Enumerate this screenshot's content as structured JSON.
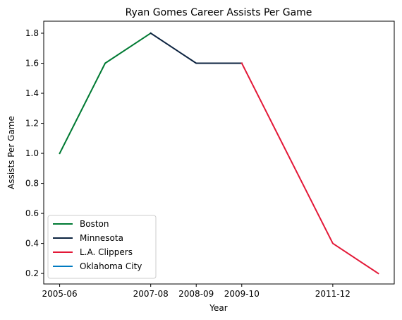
{
  "chart_data": {
    "type": "line",
    "title": "Ryan Gomes Career Assists Per Game",
    "xlabel": "Year",
    "ylabel": "Assists Per Game",
    "x_ticks": [
      "2005-06",
      "2007-08",
      "2008-09",
      "2009-10",
      "2011-12"
    ],
    "ylim": [
      0.13,
      1.88
    ],
    "y_ticks": [
      0.2,
      0.4,
      0.6,
      0.8,
      1.0,
      1.2,
      1.4,
      1.6,
      1.8
    ],
    "grid": false,
    "legend_position": "lower-left",
    "series": [
      {
        "name": "Boston",
        "color": "#007A33",
        "points": [
          {
            "x": "2005-06",
            "y": 1.0
          },
          {
            "x": "2006-07",
            "y": 1.6
          },
          {
            "x": "2007-08",
            "y": 1.8
          }
        ]
      },
      {
        "name": "Minnesota",
        "color": "#0C2340",
        "points": [
          {
            "x": "2007-08",
            "y": 1.8
          },
          {
            "x": "2008-09",
            "y": 1.6
          },
          {
            "x": "2009-10",
            "y": 1.6
          }
        ]
      },
      {
        "name": "L.A. Clippers",
        "color": "#E31837",
        "points": [
          {
            "x": "2009-10",
            "y": 1.6
          },
          {
            "x": "2011-12",
            "y": 0.4
          },
          {
            "x": "2012-13",
            "y": 0.2
          }
        ]
      },
      {
        "name": "Oklahoma City",
        "color": "#007AC1",
        "points": []
      }
    ]
  }
}
